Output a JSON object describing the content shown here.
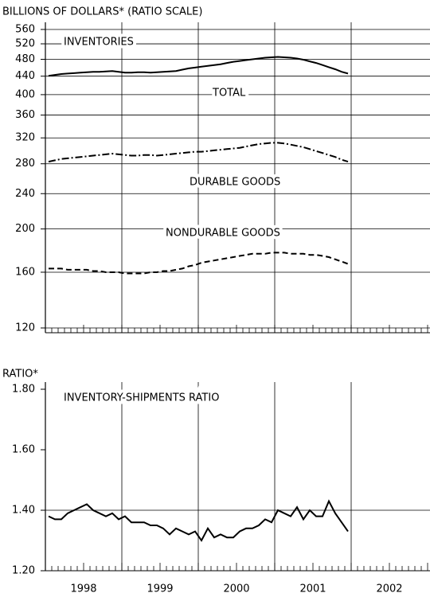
{
  "chart_data": [
    {
      "type": "line",
      "y_label": "BILLIONS OF DOLLARS* (RATIO SCALE)",
      "title": "INVENTORIES",
      "log_scale": true,
      "grid": true,
      "xlim": [
        1998,
        2003
      ],
      "x": [
        1998.042,
        1998.125,
        1998.208,
        1998.292,
        1998.375,
        1998.458,
        1998.542,
        1998.625,
        1998.708,
        1998.792,
        1998.875,
        1998.958,
        1999.042,
        1999.125,
        1999.208,
        1999.292,
        1999.375,
        1999.458,
        1999.542,
        1999.625,
        1999.708,
        1999.792,
        1999.875,
        1999.958,
        2000.042,
        2000.125,
        2000.208,
        2000.292,
        2000.375,
        2000.458,
        2000.542,
        2000.625,
        2000.708,
        2000.792,
        2000.875,
        2000.958,
        2001.042,
        2001.125,
        2001.208,
        2001.292,
        2001.375,
        2001.458,
        2001.542,
        2001.625,
        2001.708,
        2001.792,
        2001.875,
        2001.958
      ],
      "ylim": [
        120,
        560
      ],
      "yticks": [
        120,
        160,
        200,
        240,
        280,
        320,
        360,
        400,
        440,
        480,
        520,
        560
      ],
      "series": [
        {
          "name": "TOTAL",
          "color": "#000000",
          "dash": "solid",
          "values": [
            441,
            443,
            445,
            446,
            447,
            448,
            449,
            450,
            450,
            451,
            452,
            450,
            448,
            448,
            449,
            449,
            448,
            449,
            450,
            451,
            452,
            455,
            458,
            460,
            462,
            464,
            466,
            468,
            471,
            474,
            476,
            478,
            480,
            482,
            484,
            485,
            486,
            485,
            484,
            482,
            479,
            475,
            471,
            466,
            461,
            456,
            450,
            446
          ]
        },
        {
          "name": "DURABLE GOODS",
          "color": "#000000",
          "dash": "dashdot",
          "values": [
            283,
            285,
            287,
            288,
            289,
            290,
            291,
            292,
            293,
            294,
            295,
            294,
            293,
            292,
            292,
            293,
            293,
            292,
            293,
            294,
            295,
            296,
            297,
            298,
            298,
            299,
            300,
            301,
            302,
            303,
            304,
            306,
            308,
            310,
            311,
            312,
            312,
            311,
            309,
            307,
            305,
            302,
            299,
            296,
            293,
            290,
            286,
            283
          ]
        },
        {
          "name": "NONDURABLE GOODS",
          "color": "#000000",
          "dash": "dashed",
          "values": [
            163,
            163,
            163,
            162,
            162,
            162,
            162,
            161,
            161,
            160,
            160,
            160,
            159,
            159,
            159,
            159,
            160,
            160,
            161,
            161,
            162,
            163,
            165,
            166,
            168,
            169,
            170,
            171,
            172,
            173,
            174,
            175,
            176,
            176,
            176,
            177,
            177,
            177,
            176,
            176,
            176,
            175,
            175,
            174,
            173,
            171,
            169,
            167
          ]
        }
      ]
    },
    {
      "type": "line",
      "y_label": "RATIO*",
      "title": "INVENTORY-SHIPMENTS RATIO",
      "log_scale": false,
      "grid": true,
      "xlim": [
        1998,
        2003
      ],
      "x": [
        1998.042,
        1998.125,
        1998.208,
        1998.292,
        1998.375,
        1998.458,
        1998.542,
        1998.625,
        1998.708,
        1998.792,
        1998.875,
        1998.958,
        1999.042,
        1999.125,
        1999.208,
        1999.292,
        1999.375,
        1999.458,
        1999.542,
        1999.625,
        1999.708,
        1999.792,
        1999.875,
        1999.958,
        2000.042,
        2000.125,
        2000.208,
        2000.292,
        2000.375,
        2000.458,
        2000.542,
        2000.625,
        2000.708,
        2000.792,
        2000.875,
        2000.958,
        2001.042,
        2001.125,
        2001.208,
        2001.292,
        2001.375,
        2001.458,
        2001.542,
        2001.625,
        2001.708,
        2001.792,
        2001.875,
        2001.958
      ],
      "xticks": [
        {
          "value": 1998.5,
          "label": "1998"
        },
        {
          "value": 1999.5,
          "label": "1999"
        },
        {
          "value": 2000.5,
          "label": "2000"
        },
        {
          "value": 2001.5,
          "label": "2001"
        },
        {
          "value": 2002.5,
          "label": "2002"
        }
      ],
      "ylim": [
        1.2,
        1.8
      ],
      "yticks": [
        {
          "value": 1.2,
          "label": "1.20"
        },
        {
          "value": 1.4,
          "label": "1.40"
        },
        {
          "value": 1.6,
          "label": "1.60"
        },
        {
          "value": 1.8,
          "label": "1.80"
        }
      ],
      "series": [
        {
          "color": "#000000",
          "dash": "solid",
          "values": [
            1.38,
            1.37,
            1.37,
            1.39,
            1.4,
            1.41,
            1.42,
            1.4,
            1.39,
            1.38,
            1.39,
            1.37,
            1.38,
            1.36,
            1.36,
            1.36,
            1.35,
            1.35,
            1.34,
            1.32,
            1.34,
            1.33,
            1.32,
            1.33,
            1.3,
            1.34,
            1.31,
            1.32,
            1.31,
            1.31,
            1.33,
            1.34,
            1.34,
            1.35,
            1.37,
            1.36,
            1.4,
            1.39,
            1.38,
            1.41,
            1.37,
            1.4,
            1.38,
            1.38,
            1.43,
            1.39,
            1.36,
            1.33
          ]
        }
      ]
    }
  ]
}
